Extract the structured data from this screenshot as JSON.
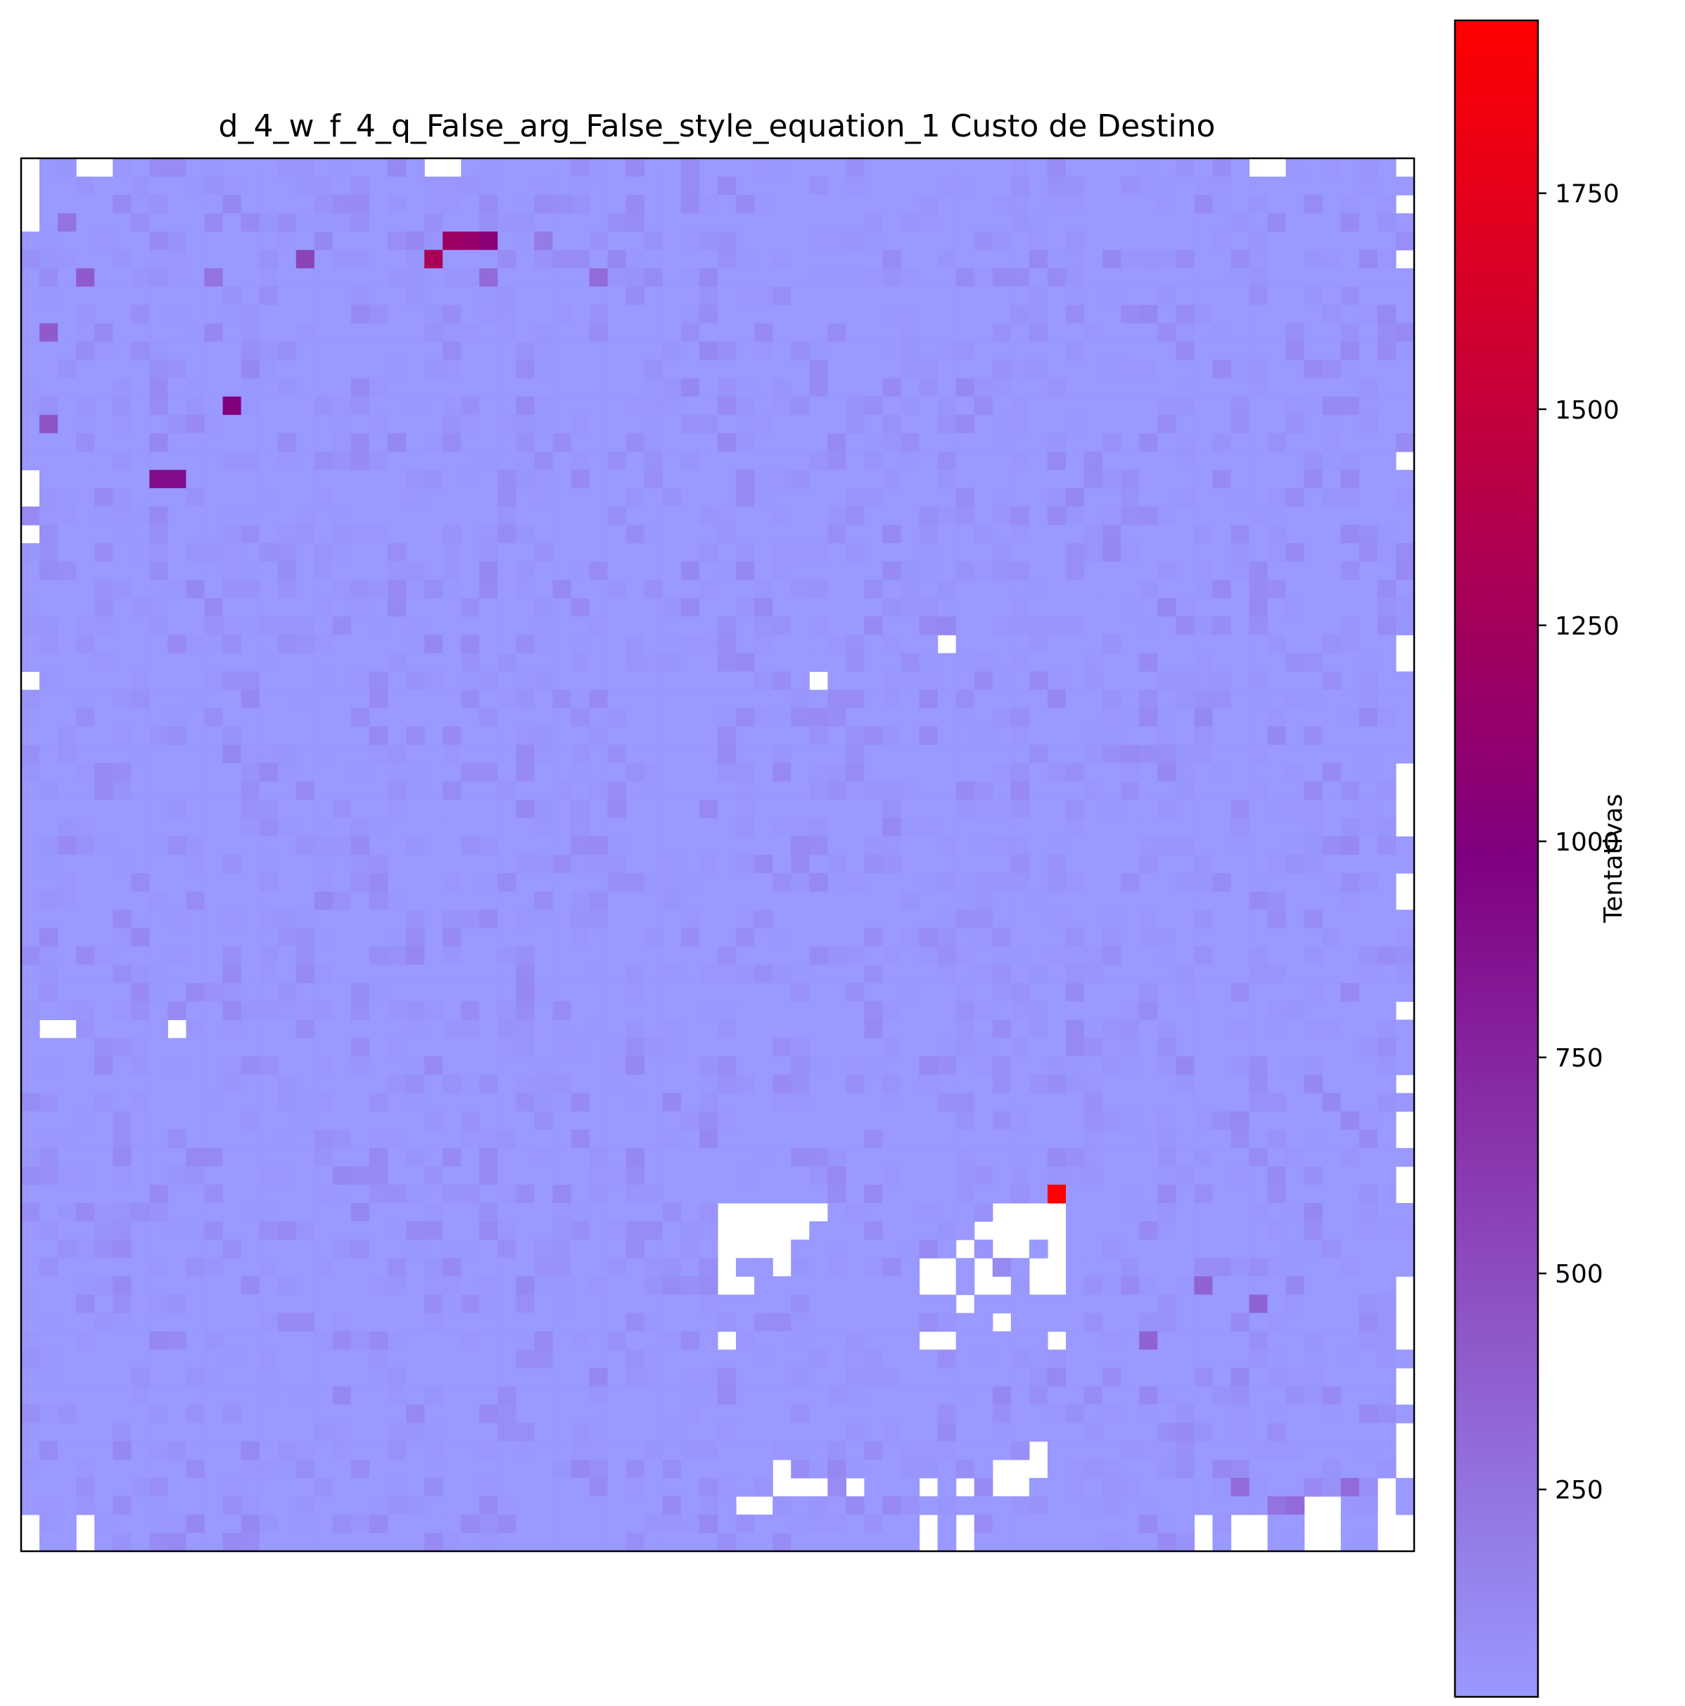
{
  "chart_data": {
    "type": "heatmap",
    "title": "d_4_w_f_4_q_False_arg_False_style_equation_1 Custo de Destino",
    "xlabel": "",
    "ylabel": "",
    "grid_size": [
      76,
      76
    ],
    "base_value": 10,
    "colorbar": {
      "label": "Tentativas",
      "range": [
        10,
        1950
      ],
      "ticks": [
        250,
        500,
        750,
        1000,
        1250,
        1500,
        1750
      ],
      "colors": [
        "#9999ff",
        "#800080",
        "#ff0000"
      ]
    },
    "missing_cells": [
      [
        0,
        0
      ],
      [
        3,
        0
      ],
      [
        4,
        0
      ],
      [
        22,
        0
      ],
      [
        23,
        0
      ],
      [
        67,
        0
      ],
      [
        68,
        0
      ],
      [
        75,
        0
      ],
      [
        0,
        1
      ],
      [
        0,
        2
      ],
      [
        75,
        2
      ],
      [
        0,
        3
      ],
      [
        75,
        5
      ],
      [
        75,
        16
      ],
      [
        0,
        17
      ],
      [
        0,
        18
      ],
      [
        0,
        20
      ],
      [
        75,
        26
      ],
      [
        75,
        27
      ],
      [
        0,
        28
      ],
      [
        50,
        26
      ],
      [
        43,
        28
      ],
      [
        75,
        33
      ],
      [
        75,
        34
      ],
      [
        75,
        35
      ],
      [
        75,
        36
      ],
      [
        75,
        39
      ],
      [
        75,
        40
      ],
      [
        1,
        47
      ],
      [
        2,
        47
      ],
      [
        8,
        47
      ],
      [
        75,
        46
      ],
      [
        75,
        50
      ],
      [
        75,
        52
      ],
      [
        75,
        53
      ],
      [
        75,
        55
      ],
      [
        75,
        56
      ],
      [
        38,
        57
      ],
      [
        39,
        57
      ],
      [
        40,
        57
      ],
      [
        41,
        57
      ],
      [
        42,
        57
      ],
      [
        43,
        57
      ],
      [
        53,
        57
      ],
      [
        54,
        57
      ],
      [
        55,
        57
      ],
      [
        56,
        57
      ],
      [
        38,
        58
      ],
      [
        39,
        58
      ],
      [
        40,
        58
      ],
      [
        41,
        58
      ],
      [
        42,
        58
      ],
      [
        52,
        58
      ],
      [
        53,
        58
      ],
      [
        54,
        58
      ],
      [
        55,
        58
      ],
      [
        56,
        58
      ],
      [
        38,
        59
      ],
      [
        39,
        59
      ],
      [
        40,
        59
      ],
      [
        41,
        59
      ],
      [
        51,
        59
      ],
      [
        53,
        59
      ],
      [
        54,
        59
      ],
      [
        56,
        59
      ],
      [
        38,
        60
      ],
      [
        41,
        60
      ],
      [
        49,
        60
      ],
      [
        50,
        60
      ],
      [
        52,
        60
      ],
      [
        55,
        60
      ],
      [
        56,
        60
      ],
      [
        38,
        61
      ],
      [
        39,
        61
      ],
      [
        49,
        61
      ],
      [
        50,
        61
      ],
      [
        52,
        61
      ],
      [
        53,
        61
      ],
      [
        55,
        61
      ],
      [
        56,
        61
      ],
      [
        51,
        62
      ],
      [
        75,
        61
      ],
      [
        75,
        62
      ],
      [
        75,
        63
      ],
      [
        53,
        63
      ],
      [
        38,
        64
      ],
      [
        49,
        64
      ],
      [
        50,
        64
      ],
      [
        56,
        64
      ],
      [
        75,
        64
      ],
      [
        75,
        66
      ],
      [
        75,
        67
      ],
      [
        75,
        69
      ],
      [
        75,
        70
      ],
      [
        75,
        71
      ],
      [
        55,
        70
      ],
      [
        55,
        71
      ],
      [
        41,
        71
      ],
      [
        53,
        71
      ],
      [
        54,
        71
      ],
      [
        41,
        72
      ],
      [
        42,
        72
      ],
      [
        43,
        72
      ],
      [
        45,
        72
      ],
      [
        49,
        72
      ],
      [
        51,
        72
      ],
      [
        53,
        72
      ],
      [
        54,
        72
      ],
      [
        74,
        72
      ],
      [
        39,
        73
      ],
      [
        40,
        73
      ],
      [
        70,
        73
      ],
      [
        71,
        73
      ],
      [
        74,
        73
      ],
      [
        0,
        74
      ],
      [
        3,
        74
      ],
      [
        49,
        74
      ],
      [
        51,
        74
      ],
      [
        64,
        74
      ],
      [
        66,
        74
      ],
      [
        67,
        74
      ],
      [
        70,
        74
      ],
      [
        71,
        74
      ],
      [
        74,
        74
      ],
      [
        75,
        74
      ],
      [
        0,
        75
      ],
      [
        3,
        75
      ],
      [
        49,
        75
      ],
      [
        51,
        75
      ],
      [
        64,
        75
      ],
      [
        66,
        75
      ],
      [
        67,
        75
      ],
      [
        70,
        75
      ],
      [
        71,
        75
      ],
      [
        74,
        75
      ],
      [
        75,
        75
      ]
    ],
    "high_cells": [
      {
        "col": 23,
        "row": 4,
        "value": 1200
      },
      {
        "col": 24,
        "row": 4,
        "value": 1150
      },
      {
        "col": 25,
        "row": 4,
        "value": 1050
      },
      {
        "col": 22,
        "row": 5,
        "value": 1300
      },
      {
        "col": 15,
        "row": 5,
        "value": 550
      },
      {
        "col": 3,
        "row": 6,
        "value": 400
      },
      {
        "col": 31,
        "row": 6,
        "value": 300
      },
      {
        "col": 25,
        "row": 6,
        "value": 300
      },
      {
        "col": 10,
        "row": 6,
        "value": 250
      },
      {
        "col": 1,
        "row": 9,
        "value": 400
      },
      {
        "col": 11,
        "row": 13,
        "value": 1000
      },
      {
        "col": 1,
        "row": 14,
        "value": 450
      },
      {
        "col": 7,
        "row": 17,
        "value": 900
      },
      {
        "col": 8,
        "row": 17,
        "value": 900
      },
      {
        "col": 56,
        "row": 56,
        "value": 1950
      },
      {
        "col": 64,
        "row": 61,
        "value": 350
      },
      {
        "col": 67,
        "row": 62,
        "value": 350
      },
      {
        "col": 61,
        "row": 64,
        "value": 350
      },
      {
        "col": 66,
        "row": 72,
        "value": 300
      },
      {
        "col": 72,
        "row": 72,
        "value": 300
      },
      {
        "col": 69,
        "row": 73,
        "value": 300
      },
      {
        "col": 68,
        "row": 73,
        "value": 250
      },
      {
        "col": 2,
        "row": 3,
        "value": 250
      },
      {
        "col": 28,
        "row": 4,
        "value": 200
      }
    ]
  }
}
